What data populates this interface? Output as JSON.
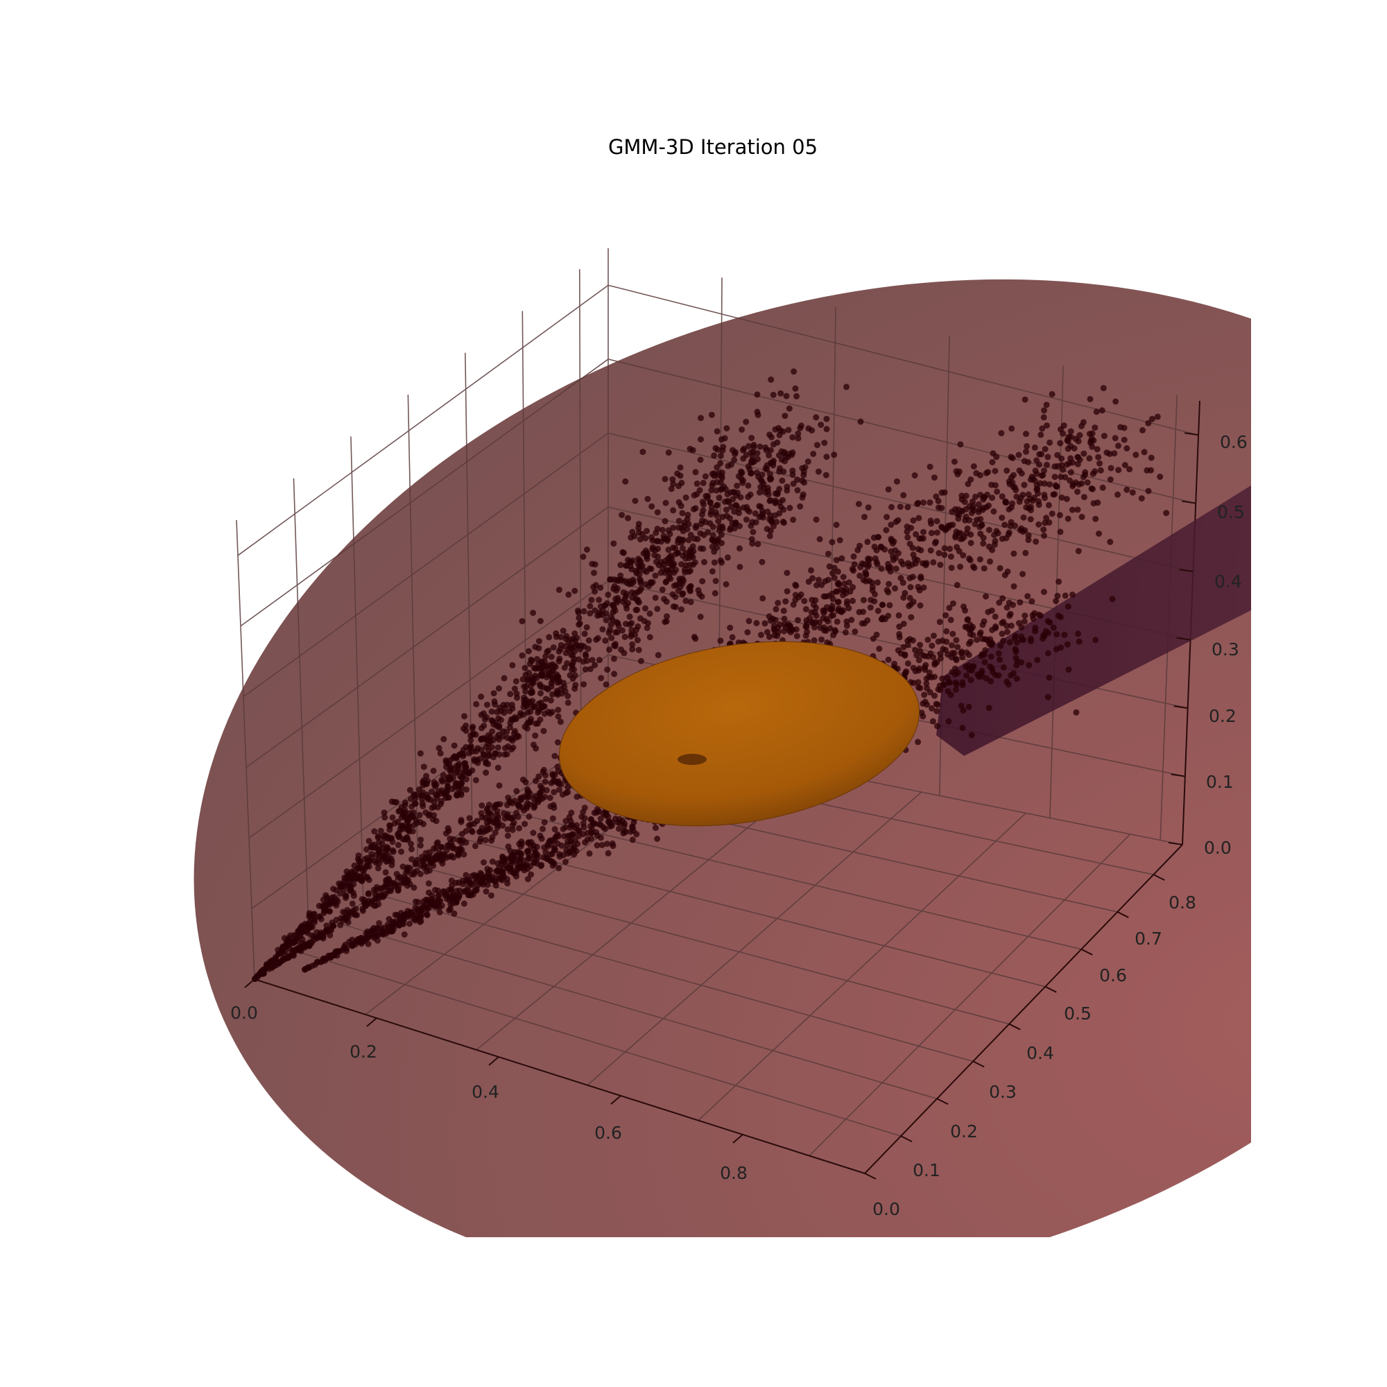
{
  "chart_data": {
    "type": "scatter",
    "subtype": "3d-scatter-with-gmm-ellipsoids",
    "title": "GMM-3D Iteration 05",
    "xlabel": "",
    "ylabel": "",
    "zlabel": "",
    "xlim": [
      0.0,
      1.0
    ],
    "ylim": [
      0.0,
      0.9
    ],
    "zlim": [
      0.0,
      0.65
    ],
    "x_ticks": [
      "0.0",
      "0.2",
      "0.4",
      "0.6",
      "0.8"
    ],
    "y_ticks": [
      "0.0",
      "0.1",
      "0.2",
      "0.3",
      "0.4",
      "0.5",
      "0.6",
      "0.7",
      "0.8"
    ],
    "z_ticks": [
      "0.0",
      "0.1",
      "0.2",
      "0.3",
      "0.4",
      "0.5",
      "0.6"
    ],
    "grid": true,
    "legend": "none",
    "points_color": "#2a0006",
    "components": [
      {
        "shape": "large translucent ellipsoid",
        "color": "#7a4b4b"
      },
      {
        "shape": "elongated dark ellipsoid",
        "color": "#3a1428"
      },
      {
        "shape": "flat ellipsoid",
        "color": "#b3660d",
        "center": [
          0.45,
          0.45,
          0.22
        ]
      }
    ],
    "point_clusters": [
      {
        "from": [
          0.0,
          0.0,
          0.0
        ],
        "to": [
          0.4,
          0.85,
          0.45
        ]
      },
      {
        "from": [
          0.0,
          0.0,
          0.0
        ],
        "to": [
          0.9,
          0.9,
          0.6
        ]
      },
      {
        "from": [
          0.05,
          0.05,
          0.0
        ],
        "to": [
          0.95,
          0.6,
          0.5
        ]
      }
    ]
  }
}
